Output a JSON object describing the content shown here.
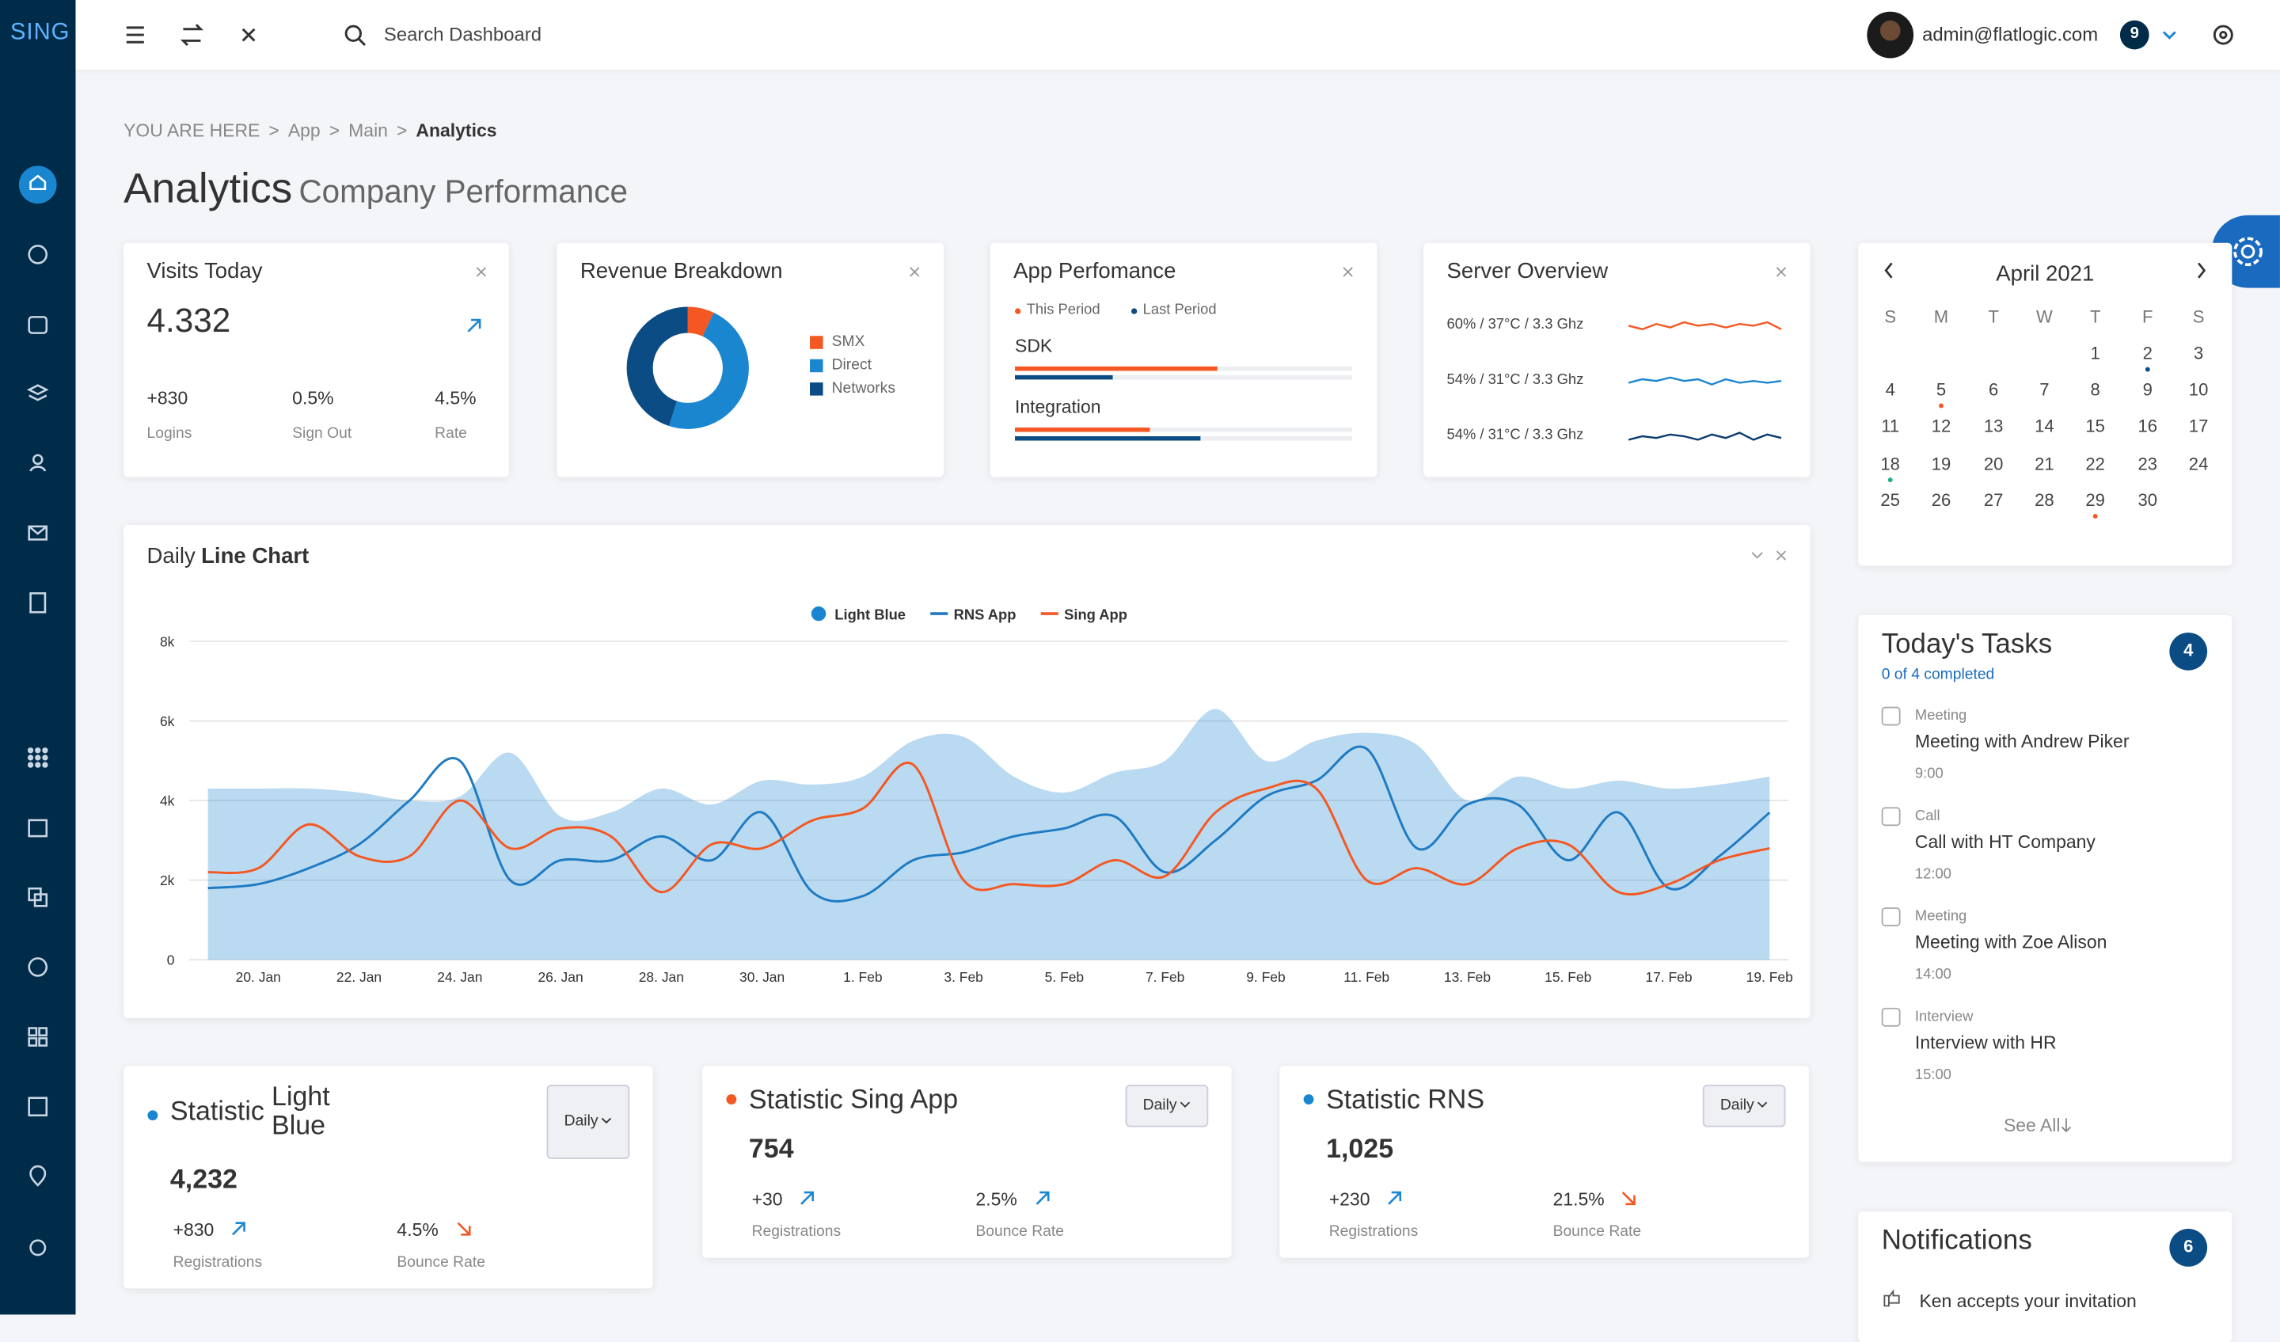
{
  "brand": "SING",
  "search_placeholder": "Search Dashboard",
  "user": {
    "email": "admin@flatlogic.com",
    "badge": 9
  },
  "breadcrumb": {
    "prefix": "YOU ARE HERE",
    "separator": ">",
    "items": [
      "App",
      "Main",
      "Analytics"
    ]
  },
  "page_title": {
    "main": "Analytics",
    "sub": "Company Performance"
  },
  "visits": {
    "title": "Visits Today",
    "value": "4.332",
    "stats": [
      {
        "value": "+830",
        "label": "Logins"
      },
      {
        "value": "0.5%",
        "label": "Sign Out"
      },
      {
        "value": "4.5%",
        "label": "Rate"
      }
    ]
  },
  "app_performance": {
    "title": "App Perfomance",
    "legend": [
      "This Period",
      "Last Period"
    ],
    "colors": [
      "#f45722",
      "#0b4c84"
    ],
    "xlim": [
      0,
      100
    ],
    "rows": [
      {
        "name": "SDK",
        "values": [
          60,
          29
        ]
      },
      {
        "name": "Integration",
        "values": [
          40,
          55
        ]
      }
    ]
  },
  "server": {
    "title": "Server Overview",
    "ylim": [
      0,
      10
    ],
    "rows": [
      {
        "label": "60% / 37°C / 3.3 Ghz",
        "color": "#f45722",
        "values": [
          5,
          3,
          6,
          4,
          7,
          5,
          6,
          4,
          6,
          5,
          7,
          3
        ]
      },
      {
        "label": "54% / 31°C / 3.3 Ghz",
        "color": "#1a86d0",
        "values": [
          4,
          6,
          5,
          7,
          5,
          6,
          3,
          6,
          4,
          5,
          4,
          5
        ]
      },
      {
        "label": "54% / 31°C / 3.3 Ghz",
        "color": "#0b3c6e",
        "values": [
          3,
          5,
          4,
          6,
          5,
          3,
          6,
          4,
          7,
          3,
          6,
          4
        ]
      }
    ]
  },
  "chart_data": [
    {
      "type": "pie",
      "title": "Revenue Breakdown",
      "donut": true,
      "categories": [
        "SMX",
        "Direct",
        "Networks"
      ],
      "values": [
        7,
        48,
        45
      ],
      "colors": [
        "#f45722",
        "#1a86d0",
        "#0b4c84"
      ]
    },
    {
      "type": "line",
      "title": "Daily",
      "title_bold": "Line Chart",
      "categories": [
        null,
        "20. Jan",
        null,
        "22. Jan",
        null,
        "24. Jan",
        null,
        "26. Jan",
        null,
        "28. Jan",
        null,
        "30. Jan",
        null,
        "1. Feb",
        null,
        "3. Feb",
        null,
        "5. Feb",
        null,
        "7. Feb",
        null,
        "9. Feb",
        null,
        "11. Feb",
        null,
        "13. Feb",
        null,
        "15. Feb",
        null,
        "17. Feb",
        null,
        "19. Feb"
      ],
      "ylim": [
        0,
        8000
      ],
      "yticks": [
        0,
        {
          "value": 2000,
          "label": "2k"
        },
        {
          "value": 4000,
          "label": "4k"
        },
        {
          "value": 6000,
          "label": "6k"
        },
        {
          "value": 8000,
          "label": "8k"
        }
      ],
      "grid": true,
      "series": [
        {
          "name": "Light Blue",
          "color": "#1a86d0",
          "style": "area",
          "values": [
            4300,
            4300,
            4300,
            4200,
            4000,
            4100,
            5200,
            3600,
            3700,
            4300,
            3900,
            4500,
            4400,
            4600,
            5500,
            5600,
            4600,
            4200,
            4700,
            5000,
            6300,
            5000,
            5500,
            5700,
            5400,
            4000,
            4600,
            4300,
            4500,
            4300,
            4400,
            4600
          ]
        },
        {
          "name": "RNS App",
          "color": "#1e7ac2",
          "style": "line",
          "values": [
            1800,
            1900,
            2300,
            2900,
            4000,
            5000,
            2000,
            2500,
            2500,
            3100,
            2500,
            3700,
            1700,
            1600,
            2500,
            2700,
            3100,
            3300,
            3600,
            2200,
            3000,
            4100,
            4500,
            5300,
            2800,
            3900,
            3900,
            2500,
            3700,
            1800,
            2600,
            3700
          ]
        },
        {
          "name": "Sing App",
          "color": "#f45722",
          "style": "line",
          "values": [
            2200,
            2300,
            3400,
            2600,
            2600,
            4000,
            2800,
            3300,
            3100,
            1700,
            2900,
            2800,
            3500,
            3800,
            4900,
            2000,
            1900,
            1900,
            2500,
            2100,
            3700,
            4300,
            4300,
            2000,
            2300,
            1900,
            2800,
            2900,
            1700,
            1900,
            2500,
            2800
          ]
        }
      ]
    }
  ],
  "statistics": [
    {
      "title": "Statistic",
      "name": "Light Blue",
      "color": "#1a86d0",
      "dropdown": "Daily",
      "value": "4,232",
      "stats": [
        {
          "value": "+830",
          "label": "Registrations",
          "trend": "up"
        },
        {
          "value": "4.5%",
          "label": "Bounce Rate",
          "trend": "down"
        }
      ]
    },
    {
      "title": "Statistic",
      "name": "Sing App",
      "color": "#f45722",
      "dropdown": "Daily",
      "value": "754",
      "stats": [
        {
          "value": "+30",
          "label": "Registrations",
          "trend": "up"
        },
        {
          "value": "2.5%",
          "label": "Bounce Rate",
          "trend": "up"
        }
      ]
    },
    {
      "title": "Statistic",
      "name": "RNS",
      "color": "#1a86d0",
      "dropdown": "Daily",
      "value": "1,025",
      "stats": [
        {
          "value": "+230",
          "label": "Registrations",
          "trend": "up"
        },
        {
          "value": "21.5%",
          "label": "Bounce Rate",
          "trend": "down"
        }
      ]
    }
  ],
  "calendar": {
    "month": "April 2021",
    "weekdays": [
      "S",
      "M",
      "T",
      "W",
      "T",
      "F",
      "S"
    ],
    "weeks": [
      [
        null,
        null,
        null,
        null,
        1,
        2,
        3
      ],
      [
        4,
        5,
        6,
        7,
        8,
        9,
        10
      ],
      [
        11,
        12,
        13,
        14,
        15,
        16,
        17
      ],
      [
        18,
        19,
        20,
        21,
        22,
        23,
        24
      ],
      [
        25,
        26,
        27,
        28,
        29,
        30,
        null
      ]
    ],
    "events": [
      {
        "day": 2,
        "color": "#0b4c84"
      },
      {
        "day": 5,
        "color": "#f45722"
      },
      {
        "day": 18,
        "color": "#21ae8c"
      },
      {
        "day": 29,
        "color": "#f45722"
      }
    ]
  },
  "tasks": {
    "title": "Today's Tasks",
    "count": 4,
    "progress": "0 of 4 completed",
    "see_all": "See All",
    "items": [
      {
        "type": "Meeting",
        "text": "Meeting with Andrew Piker",
        "time": "9:00"
      },
      {
        "type": "Call",
        "text": "Call with HT Company",
        "time": "12:00"
      },
      {
        "type": "Meeting",
        "text": "Meeting with Zoe Alison",
        "time": "14:00"
      },
      {
        "type": "Interview",
        "text": "Interview with HR",
        "time": "15:00"
      }
    ]
  },
  "notifications": {
    "title": "Notifications",
    "count": 6,
    "items": [
      "Ken accepts your invitation"
    ]
  }
}
